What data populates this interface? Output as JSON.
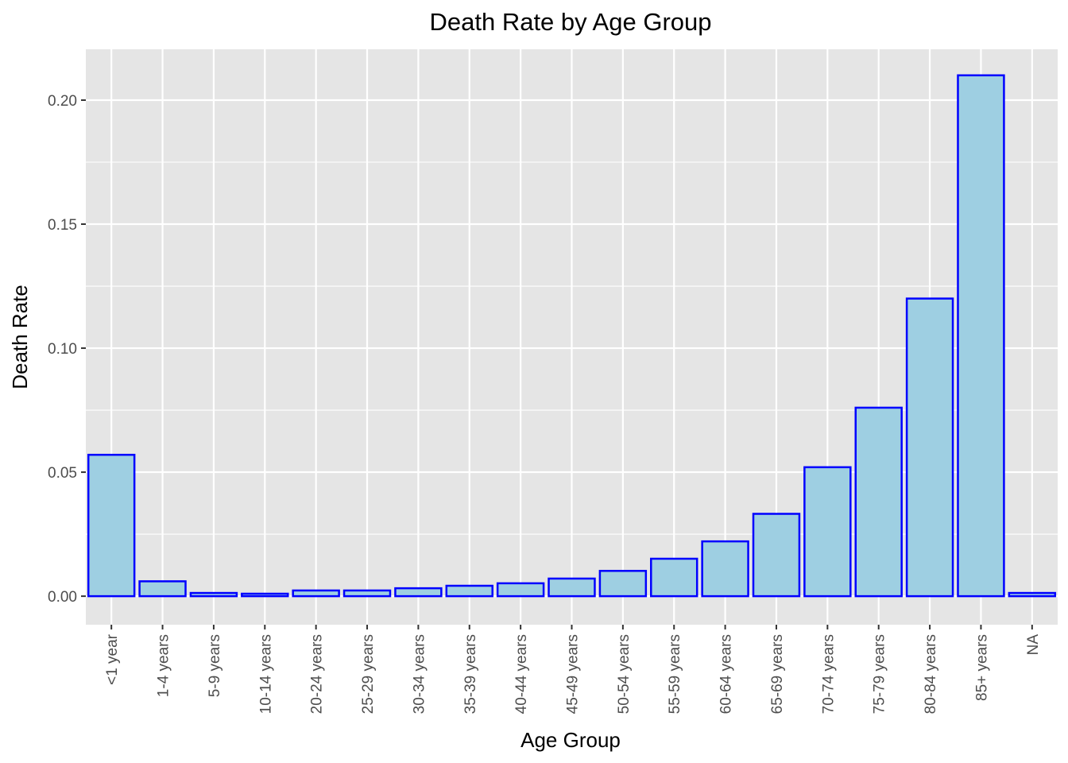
{
  "chart_data": {
    "type": "bar",
    "title": "Death Rate by Age Group",
    "xlabel": "Age Group",
    "ylabel": "Death Rate",
    "categories": [
      "<1 year",
      "1-4 years",
      "5-9 years",
      "10-14 years",
      "20-24 years",
      "25-29 years",
      "30-34 years",
      "35-39 years",
      "40-44 years",
      "45-49 years",
      "50-54 years",
      "55-59 years",
      "60-64 years",
      "65-69 years",
      "70-74 years",
      "75-79 years",
      "80-84 years",
      "85+ years",
      "NA"
    ],
    "values": [
      0.057,
      0.006,
      0.0013,
      0.001,
      0.0023,
      0.0023,
      0.0032,
      0.0042,
      0.0052,
      0.0071,
      0.0102,
      0.0151,
      0.0221,
      0.0332,
      0.052,
      0.076,
      0.12,
      0.21,
      0.0013
    ],
    "ylim": [
      -0.0115,
      0.2205
    ],
    "yticks": [
      0.0,
      0.05,
      0.1,
      0.15,
      0.2
    ],
    "ytick_labels": [
      "0.00",
      "0.05",
      "0.10",
      "0.15",
      "0.20"
    ],
    "grid": true,
    "legend": "none",
    "colors": {
      "panel_background": "#e5e5e5",
      "grid": "#ffffff",
      "bar_fill": "#9ecfe2",
      "bar_outline": "#0000ff",
      "tick_label": "#4d4d4d",
      "text": "#000000"
    }
  }
}
